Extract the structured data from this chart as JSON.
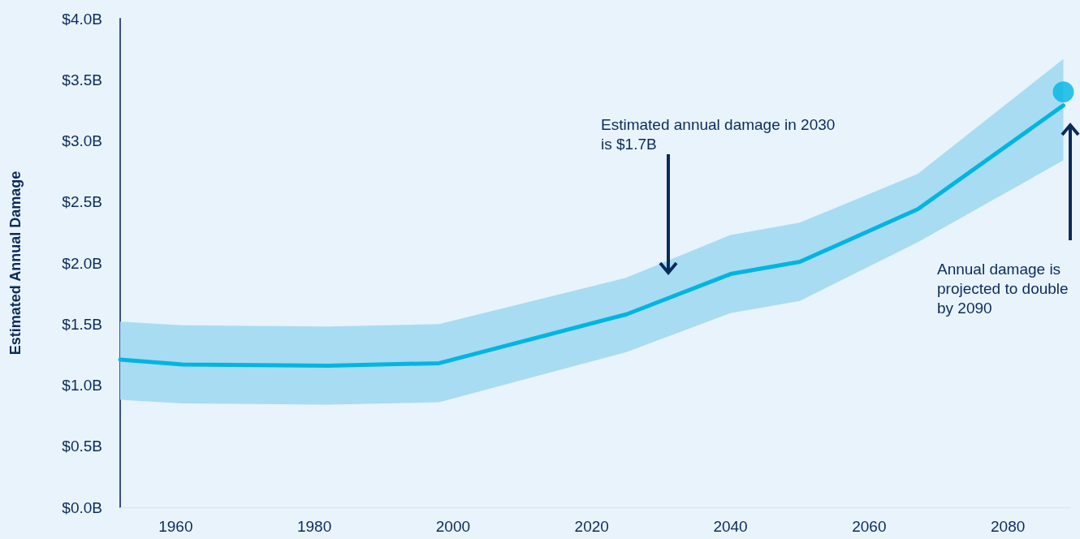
{
  "chart_data": {
    "type": "line",
    "ylabel": "Estimated Annual Damage",
    "x": [
      1952,
      1961,
      1982,
      1998,
      2025,
      2040,
      2050,
      2067,
      2088
    ],
    "xlim": [
      1952,
      2089
    ],
    "xticks": [
      1960,
      1980,
      2000,
      2020,
      2040,
      2060,
      2080
    ],
    "ylim": [
      0,
      4
    ],
    "yticks": [
      {
        "value": 0,
        "label": "$0.0B"
      },
      {
        "value": 0.5,
        "label": "$0.5B"
      },
      {
        "value": 1,
        "label": "$1.0B"
      },
      {
        "value": 1.5,
        "label": "$1.5B"
      },
      {
        "value": 2,
        "label": "$2.0B"
      },
      {
        "value": 2.5,
        "label": "$2.5B"
      },
      {
        "value": 3,
        "label": "$3.0B"
      },
      {
        "value": 3.5,
        "label": "$3.5B"
      },
      {
        "value": 4,
        "label": "$4.0B"
      }
    ],
    "series": [
      {
        "color": "#00b5e2",
        "values": [
          1.21,
          1.17,
          1.16,
          1.18,
          1.58,
          1.91,
          2.01,
          2.44,
          3.29
        ],
        "lower": [
          0.88,
          0.85,
          0.84,
          0.86,
          1.27,
          1.59,
          1.69,
          2.17,
          2.84
        ],
        "upper": [
          1.52,
          1.49,
          1.48,
          1.5,
          1.88,
          2.23,
          2.33,
          2.73,
          3.67
        ]
      },
      {
        "type": "scatter",
        "marker": "circle",
        "color": "#00b5e2",
        "x": [
          2088
        ],
        "values": [
          3.4
        ]
      }
    ],
    "grid": false,
    "marker": "none",
    "line_style": "solid",
    "annotations": [
      "Estimated annual damage in 2030 is $1.7B",
      "Annual damage is projected to double by 2090"
    ]
  }
}
